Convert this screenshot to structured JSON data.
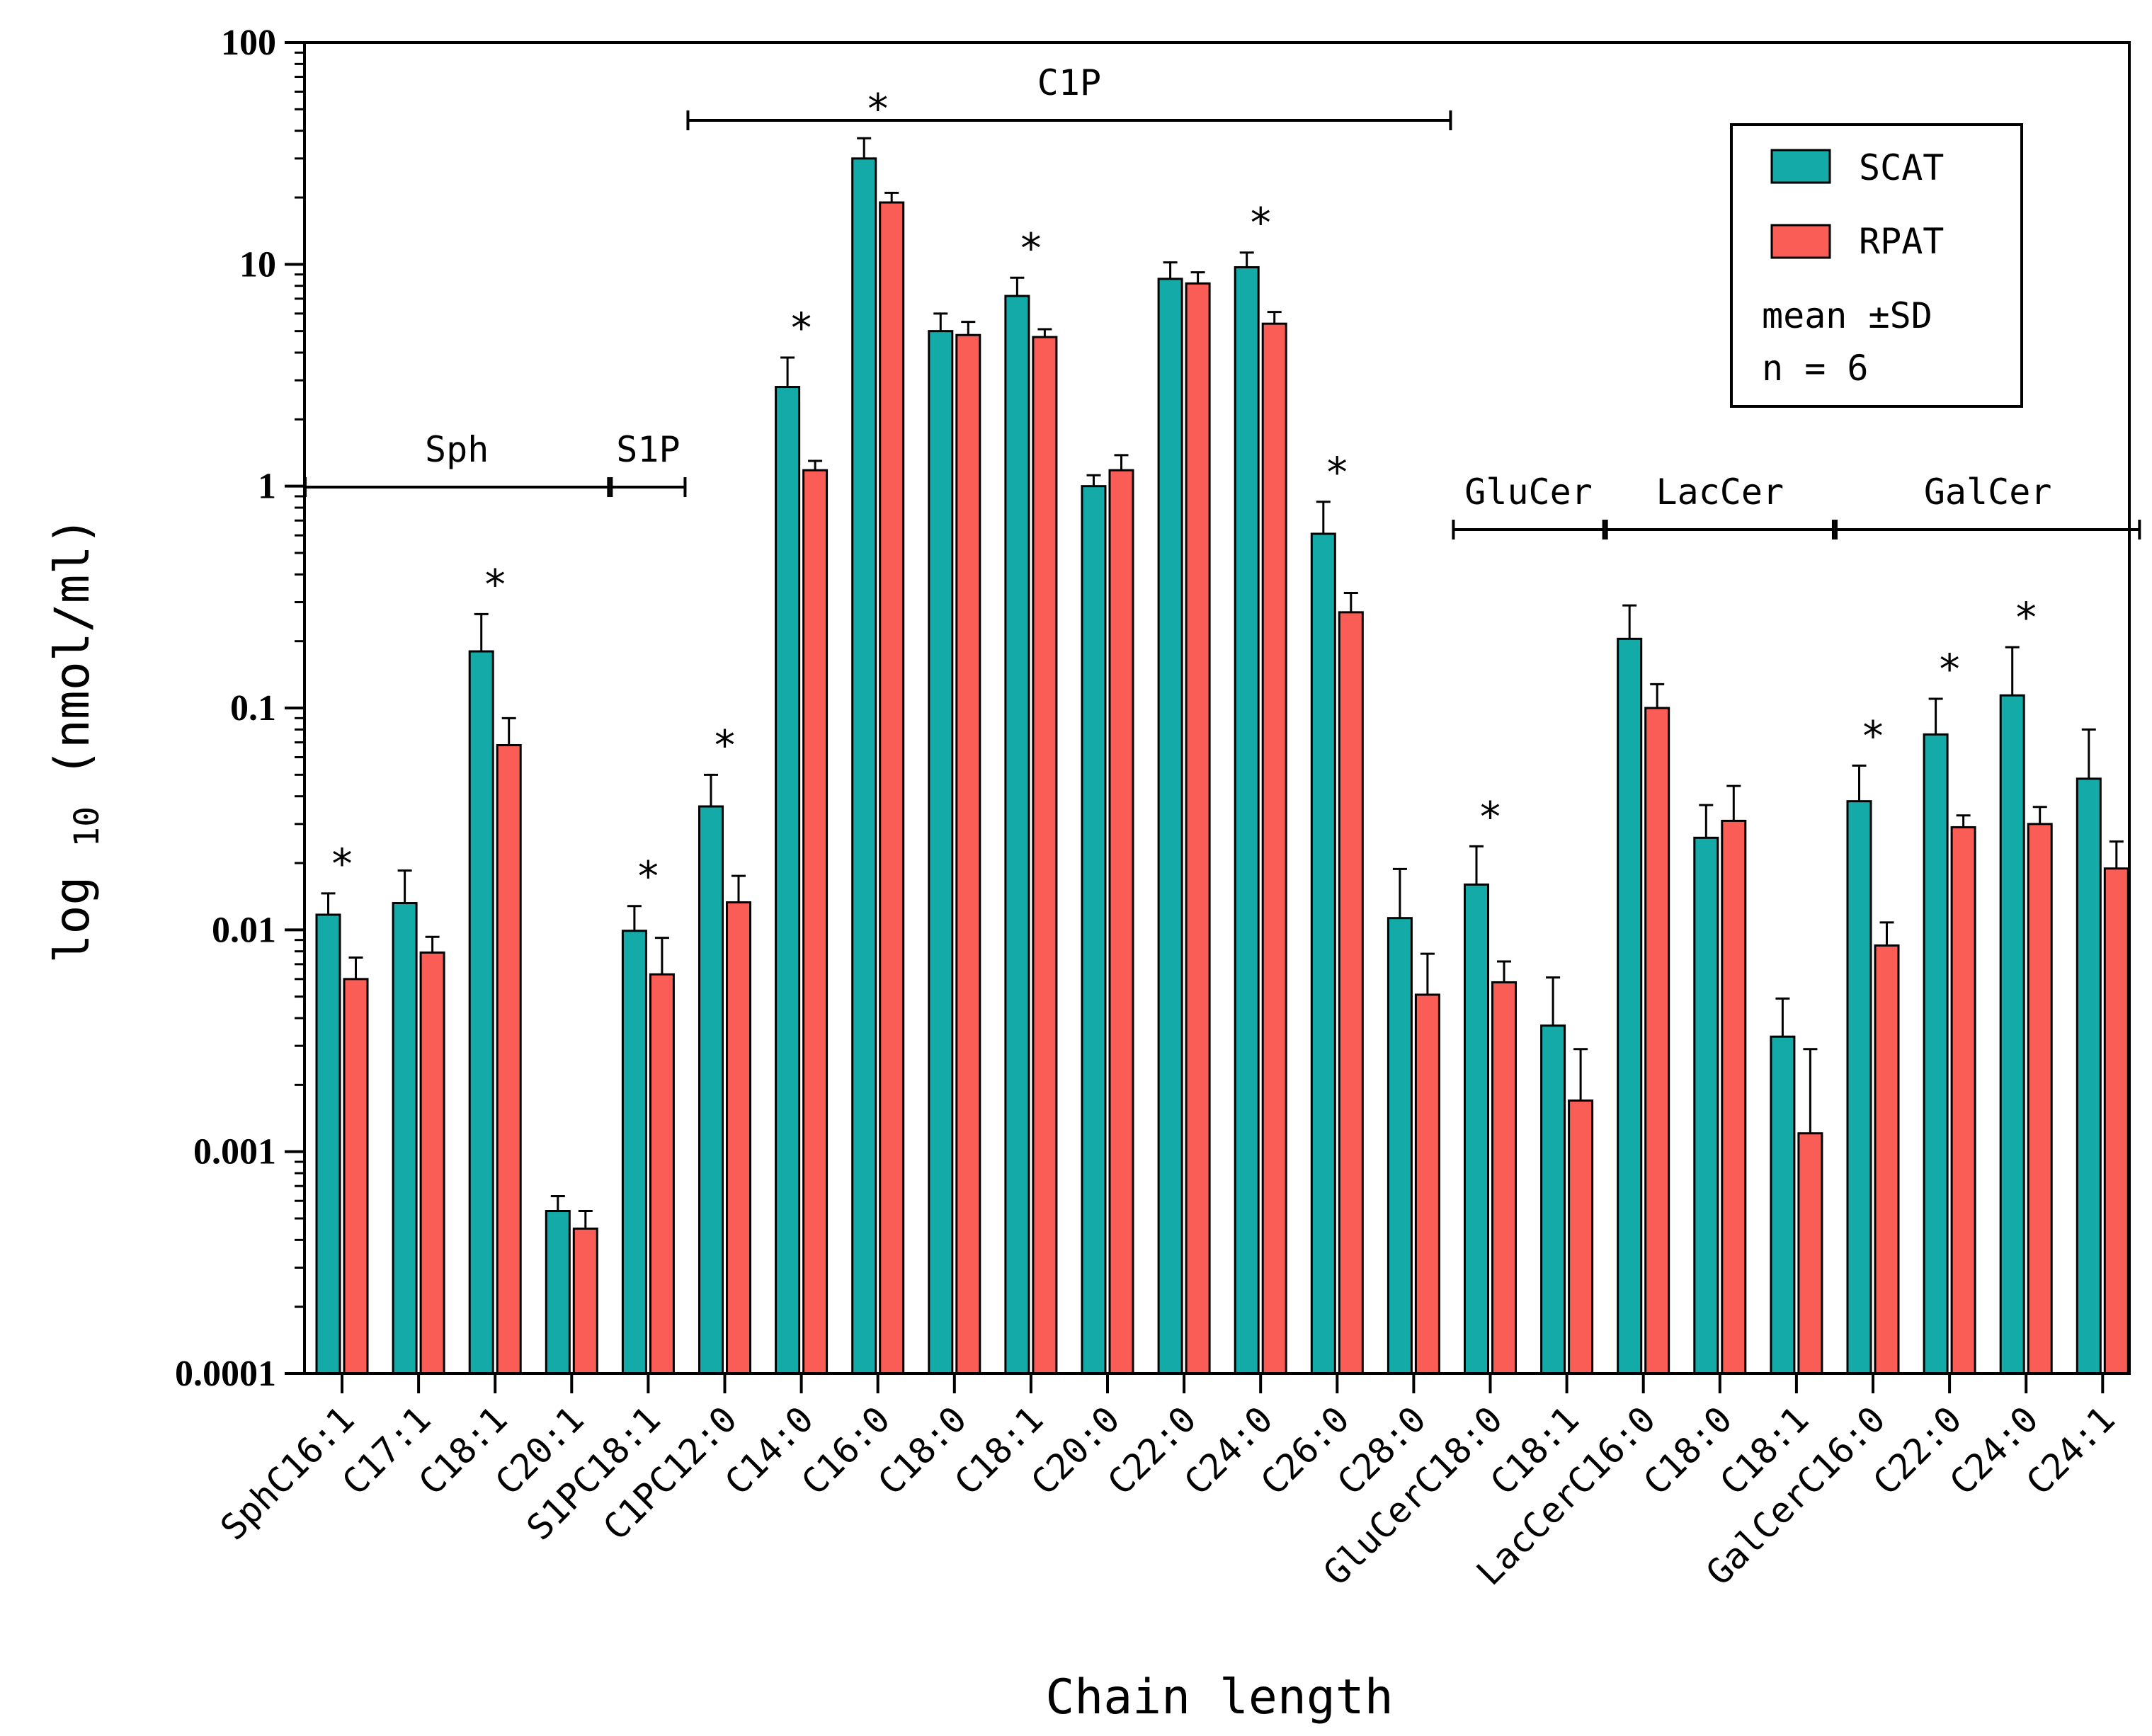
{
  "chart_data": {
    "type": "bar",
    "yscale": "log10",
    "title": "",
    "xlabel": "Chain length",
    "ylabel": "log",
    "ylabel_sub": "10",
    "ylabel_unit": "(nmol/ml)",
    "ylim": [
      0.0001,
      100
    ],
    "yticks": [
      "100",
      "10",
      "1",
      "0.1",
      "0.01",
      "0.001",
      "0.0001"
    ],
    "categories": [
      "SphC16:1",
      "C17:1",
      "C18:1",
      "C20:1",
      "S1PC18:1",
      "C1PC12:0",
      "C14:0",
      "C16:0",
      "C18:0",
      "C18:1",
      "C20:0",
      "C22:0",
      "C24:0",
      "C26:0",
      "C28:0",
      "GluCerC18:0",
      "C18:1",
      "LacCerC16:0",
      "C18:0",
      "C18:1",
      "GalCerC16:0",
      "C22:0",
      "C24:0",
      "C24:1"
    ],
    "series": [
      {
        "name": "SCAT",
        "color": "#14aaa8",
        "values": [
          0.0117,
          0.0132,
          0.18,
          0.00054,
          0.0099,
          0.036,
          2.8,
          30,
          5.0,
          7.2,
          1.0,
          8.6,
          9.7,
          0.61,
          0.0113,
          0.016,
          0.0037,
          0.205,
          0.026,
          0.0033,
          0.038,
          0.076,
          0.114,
          0.048
        ],
        "errors": [
          0.0146,
          0.0185,
          0.265,
          0.00063,
          0.0128,
          0.05,
          3.8,
          37,
          6.0,
          8.7,
          1.12,
          10.2,
          11.3,
          0.85,
          0.0188,
          0.0238,
          0.0061,
          0.29,
          0.0365,
          0.0049,
          0.055,
          0.11,
          0.188,
          0.08
        ]
      },
      {
        "name": "RPAT",
        "color": "#fa5d55",
        "values": [
          0.006,
          0.0079,
          0.068,
          0.00045,
          0.0063,
          0.0133,
          1.18,
          19,
          4.8,
          4.7,
          1.18,
          8.2,
          5.4,
          0.27,
          0.0051,
          0.0058,
          0.0017,
          0.1,
          0.031,
          0.00121,
          0.0085,
          0.029,
          0.03,
          0.0189
        ],
        "errors": [
          0.0075,
          0.0093,
          0.09,
          0.00054,
          0.0092,
          0.0175,
          1.3,
          21,
          5.5,
          5.1,
          1.38,
          9.2,
          6.1,
          0.33,
          0.0078,
          0.0072,
          0.0029,
          0.128,
          0.0445,
          0.0029,
          0.0108,
          0.0328,
          0.0358,
          0.025
        ]
      }
    ],
    "significant": [
      true,
      false,
      true,
      false,
      true,
      true,
      true,
      true,
      false,
      true,
      false,
      false,
      true,
      true,
      false,
      true,
      false,
      false,
      false,
      false,
      true,
      true,
      true,
      false
    ],
    "significance_marker": "*",
    "groups": [
      {
        "label": "Sph",
        "from": 0,
        "to": 3
      },
      {
        "label": "S1P",
        "from": 4,
        "to": 4
      },
      {
        "label": "C1P",
        "from": 5,
        "to": 14
      },
      {
        "label": "GluCer",
        "from": 15,
        "to": 16
      },
      {
        "label": "LacCer",
        "from": 17,
        "to": 19
      },
      {
        "label": "GalCer",
        "from": 20,
        "to": 23
      }
    ],
    "legend": {
      "position": "top-right",
      "entries": [
        "SCAT",
        "RPAT"
      ],
      "note_line1": "mean ±SD",
      "note_line2": "n = 6"
    }
  }
}
